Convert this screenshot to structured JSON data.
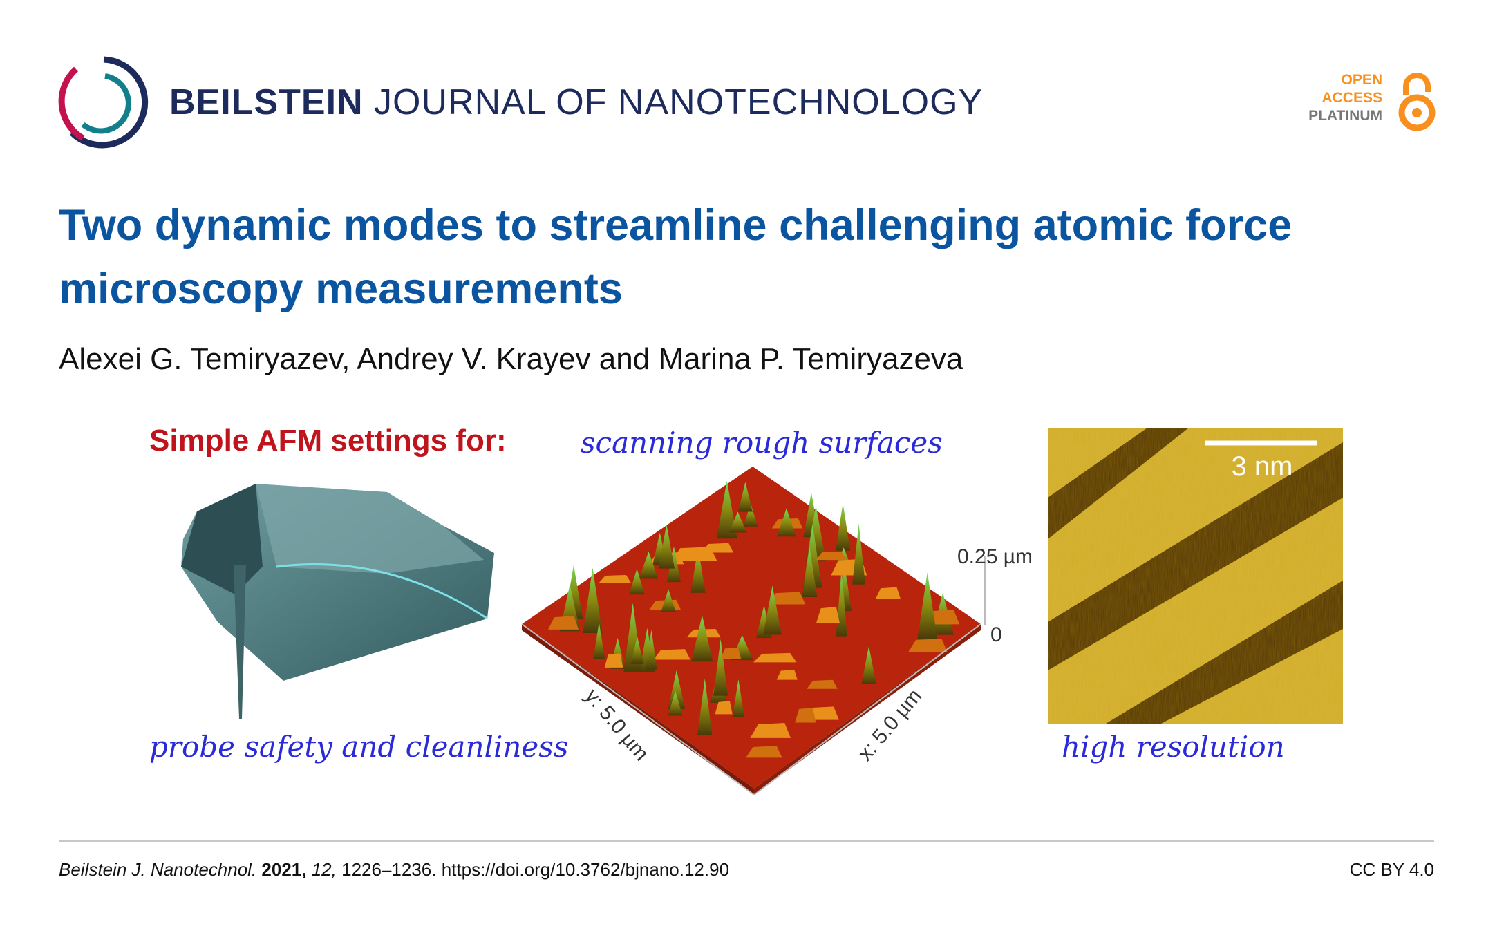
{
  "header": {
    "journal_bold": "BEILSTEIN",
    "journal_rest": "JOURNAL OF NANOTECHNOLOGY",
    "badge": {
      "line1": "OPEN",
      "line2": "ACCESS",
      "line3": "PLATINUM",
      "icon": "open-access-lock-icon"
    }
  },
  "article": {
    "title": "Two dynamic modes to streamline challenging atomic force microscopy measurements",
    "authors": "Alexei G. Temiryazev, Andrey V. Krayev and Marina P. Temiryazeva"
  },
  "figure": {
    "heading": "Simple AFM settings for:",
    "label_rough": "scanning rough surfaces",
    "label_probe": "probe  safety  and cleanliness",
    "label_resolution": "high resolution",
    "z_max": "0.25 µm",
    "z_min": "0",
    "y_axis": "y: 5.0 µm",
    "x_axis": "x: 5.0 µm",
    "scale_bar": "3 nm"
  },
  "footer": {
    "journal": "Beilstein J. Nanotechnol.",
    "year": "2021,",
    "volume": "12,",
    "pages_doi": "1226–1236. https://doi.org/10.3762/bjnano.12.90",
    "license": "CC BY 4.0"
  },
  "colors": {
    "title": "#0b55a0",
    "journal": "#1d2a5c",
    "open_access": "#f7901e",
    "heading_red": "#c0141c",
    "handwriting_blue": "#2a2ad8"
  }
}
